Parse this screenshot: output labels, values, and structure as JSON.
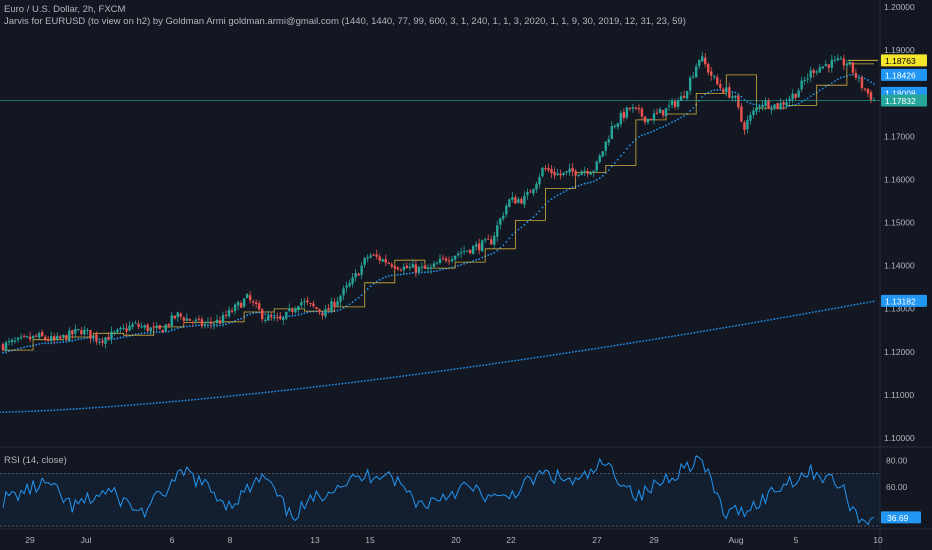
{
  "header": {
    "symbol_line": "Euro / U.S. Dollar, 2h, FXCM",
    "indicator_line": "Jarvis for EURUSD (to view on h2) by Goldman Armi goldman.armi@gmail.com (1440, 1440, 77, 99, 600, 3, 1, 240, 1, 1, 3, 2020, 1, 1, 9, 30, 2019, 12, 31, 23, 59)"
  },
  "rsi": {
    "title": "RSI (14, close)",
    "last_value": "36.69",
    "ticks": [
      "80.00",
      "60.00"
    ],
    "upper_band": 70,
    "lower_band": 30
  },
  "price_axis": {
    "ticks": [
      "1.20000",
      "1.19000",
      "1.18000",
      "1.17000",
      "1.16000",
      "1.15000",
      "1.14000",
      "1.13000",
      "1.12000",
      "1.11000",
      "1.10000"
    ],
    "labels": [
      {
        "text": "1.18763",
        "value": 1.18763,
        "color": "#f5e52c",
        "text_color": "#000000"
      },
      {
        "text": "1.18426",
        "value": 1.18426,
        "color": "#2196f3",
        "text_color": "#ffffff"
      },
      {
        "text": "1.18008",
        "value": 1.18008,
        "color": "#2196f3",
        "text_color": "#ffffff"
      },
      {
        "text": "1.17832",
        "value": 1.17832,
        "color": "#26a69a",
        "text_color": "#ffffff"
      },
      {
        "text": "1.13182",
        "value": 1.13182,
        "color": "#2196f3",
        "text_color": "#ffffff"
      }
    ]
  },
  "time_axis": {
    "labels": [
      "29",
      "Jul",
      "6",
      "8",
      "13",
      "15",
      "20",
      "22",
      "27",
      "29",
      "Aug",
      "5",
      "10"
    ]
  },
  "colors": {
    "up": "#26a69a",
    "down": "#ef5350",
    "ma": "#2196f3",
    "step": "#f5c842",
    "bg": "#131722",
    "grid": "#2a2e39",
    "axis_text": "#b2b5be"
  },
  "chart_data": {
    "type": "candlestick",
    "symbol": "EURUSD",
    "timeframe": "2h",
    "ylim": [
      1.1,
      1.2
    ],
    "anchors": [
      {
        "t": 0,
        "v": 1.1215
      },
      {
        "t": 0.04,
        "v": 1.1235
      },
      {
        "t": 0.06,
        "v": 1.1225
      },
      {
        "t": 0.09,
        "v": 1.125
      },
      {
        "t": 0.11,
        "v": 1.1228
      },
      {
        "t": 0.13,
        "v": 1.1242
      },
      {
        "t": 0.15,
        "v": 1.1262
      },
      {
        "t": 0.18,
        "v": 1.1248
      },
      {
        "t": 0.2,
        "v": 1.1285
      },
      {
        "t": 0.23,
        "v": 1.1262
      },
      {
        "t": 0.25,
        "v": 1.1272
      },
      {
        "t": 0.28,
        "v": 1.1325
      },
      {
        "t": 0.3,
        "v": 1.128
      },
      {
        "t": 0.32,
        "v": 1.127
      },
      {
        "t": 0.34,
        "v": 1.1318
      },
      {
        "t": 0.37,
        "v": 1.129
      },
      {
        "t": 0.4,
        "v": 1.136
      },
      {
        "t": 0.42,
        "v": 1.1425
      },
      {
        "t": 0.44,
        "v": 1.141
      },
      {
        "t": 0.46,
        "v": 1.1395
      },
      {
        "t": 0.49,
        "v": 1.139
      },
      {
        "t": 0.51,
        "v": 1.142
      },
      {
        "t": 0.53,
        "v": 1.1435
      },
      {
        "t": 0.56,
        "v": 1.1455
      },
      {
        "t": 0.58,
        "v": 1.155
      },
      {
        "t": 0.6,
        "v": 1.1555
      },
      {
        "t": 0.62,
        "v": 1.1625
      },
      {
        "t": 0.64,
        "v": 1.161
      },
      {
        "t": 0.66,
        "v": 1.162
      },
      {
        "t": 0.68,
        "v": 1.1625
      },
      {
        "t": 0.7,
        "v": 1.1725
      },
      {
        "t": 0.72,
        "v": 1.1765
      },
      {
        "t": 0.74,
        "v": 1.174
      },
      {
        "t": 0.76,
        "v": 1.176
      },
      {
        "t": 0.78,
        "v": 1.179
      },
      {
        "t": 0.8,
        "v": 1.1885
      },
      {
        "t": 0.82,
        "v": 1.182
      },
      {
        "t": 0.84,
        "v": 1.179
      },
      {
        "t": 0.85,
        "v": 1.172
      },
      {
        "t": 0.87,
        "v": 1.178
      },
      {
        "t": 0.89,
        "v": 1.177
      },
      {
        "t": 0.91,
        "v": 1.18
      },
      {
        "t": 0.93,
        "v": 1.1855
      },
      {
        "t": 0.95,
        "v": 1.187
      },
      {
        "t": 0.97,
        "v": 1.187
      },
      {
        "t": 0.985,
        "v": 1.182
      },
      {
        "t": 1.0,
        "v": 1.1783
      }
    ],
    "long_ma": {
      "start": 1.106,
      "end": 1.13182
    },
    "rsi_anchors": [
      {
        "t": 0,
        "v": 50
      },
      {
        "t": 0.05,
        "v": 63
      },
      {
        "t": 0.08,
        "v": 44
      },
      {
        "t": 0.12,
        "v": 57
      },
      {
        "t": 0.16,
        "v": 40
      },
      {
        "t": 0.21,
        "v": 72
      },
      {
        "t": 0.26,
        "v": 46
      },
      {
        "t": 0.3,
        "v": 68
      },
      {
        "t": 0.33,
        "v": 37
      },
      {
        "t": 0.38,
        "v": 61
      },
      {
        "t": 0.44,
        "v": 72
      },
      {
        "t": 0.48,
        "v": 46
      },
      {
        "t": 0.53,
        "v": 60
      },
      {
        "t": 0.57,
        "v": 49
      },
      {
        "t": 0.62,
        "v": 70
      },
      {
        "t": 0.66,
        "v": 63
      },
      {
        "t": 0.69,
        "v": 78
      },
      {
        "t": 0.73,
        "v": 52
      },
      {
        "t": 0.76,
        "v": 66
      },
      {
        "t": 0.8,
        "v": 82
      },
      {
        "t": 0.83,
        "v": 38
      },
      {
        "t": 0.86,
        "v": 45
      },
      {
        "t": 0.9,
        "v": 64
      },
      {
        "t": 0.93,
        "v": 72
      },
      {
        "t": 0.96,
        "v": 62
      },
      {
        "t": 0.985,
        "v": 33
      },
      {
        "t": 1.0,
        "v": 36.69
      }
    ],
    "rsi_ylim": [
      25,
      85
    ]
  }
}
